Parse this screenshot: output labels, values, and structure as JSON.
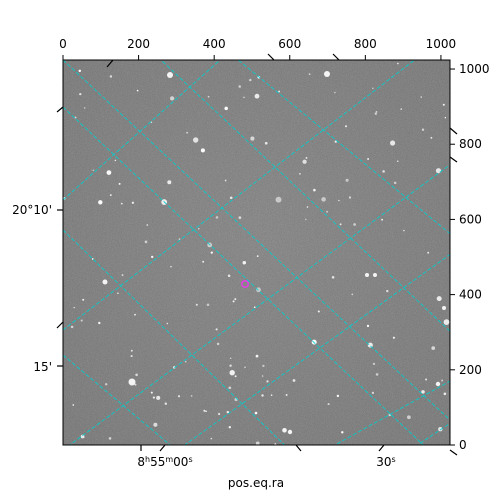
{
  "figure": {
    "xlabel": "pos.eq.ra",
    "top_ticks": [
      0,
      200,
      400,
      600,
      800,
      1000
    ],
    "right_ticks": [
      0,
      200,
      400,
      600,
      800,
      1000
    ],
    "ra_ticks": [
      {
        "main": "8",
        "sup1": "h",
        "mid": "55",
        "sup2": "m",
        "tail": "00",
        "sup3": "s"
      },
      {
        "main": "30",
        "sup3": "s"
      }
    ],
    "dec_ticks": [
      "20°10'",
      "15'"
    ],
    "image_extent": {
      "x": [
        0,
        1024
      ],
      "y": [
        0,
        1024
      ]
    },
    "colors": {
      "grid": "#00d0d0",
      "marker": "#e040e0",
      "background": "#6a6a6a"
    }
  }
}
